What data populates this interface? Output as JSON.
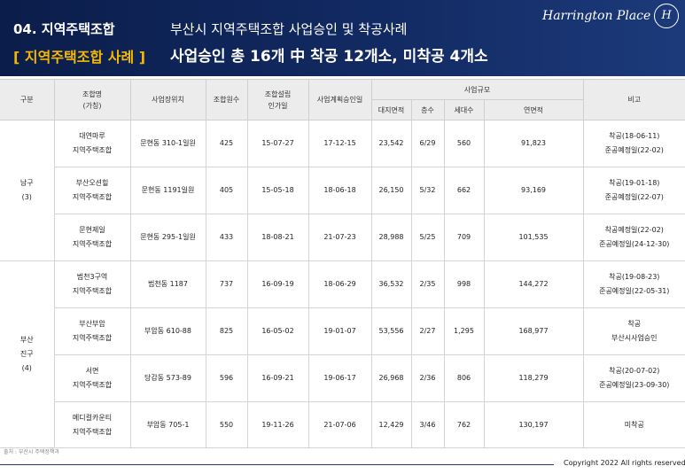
{
  "header": {
    "section_title": "04. 지역주택조합",
    "section_subtitle": "부산시 지역주택조합 사업승인 및 착공사례",
    "main_left": "[ 지역주택조합 사례 ]",
    "main_right": "사업승인 총 16개 中 착공 12개소, 미착공  4개소",
    "logo_text": "Harrington Place",
    "logo_emblem": "H"
  },
  "table": {
    "headers": {
      "category": "구분",
      "union_name_l1": "조합명",
      "union_name_l2": "(가칭)",
      "location": "사업장위치",
      "members": "조합원수",
      "setup_l1": "조합설립",
      "setup_l2": "인가일",
      "plan_approval": "사업계획승인일",
      "scale": "사업규모",
      "land_area": "대지면적",
      "floors": "층수",
      "households": "세대수",
      "floor_area": "연면적",
      "remarks": "비고"
    },
    "groups": [
      {
        "name": "남구",
        "name_l2": "",
        "count": "(3)",
        "rows": [
          {
            "name_l1": "대연마루",
            "name_l2": "지역주택조합",
            "location": "문현동 310-1일원",
            "members": "425",
            "setup": "15-07-27",
            "approval": "17-12-15",
            "land": "23,542",
            "floors": "6/29",
            "households": "560",
            "area": "91,823",
            "remark_l1": "착공(18-06-11)",
            "remark_l2": "준공예정일(22-02)"
          },
          {
            "name_l1": "부산오션힐",
            "name_l2": "지역주택조합",
            "location": "문현동 1191일원",
            "members": "405",
            "setup": "15-05-18",
            "approval": "18-06-18",
            "land": "26,150",
            "floors": "5/32",
            "households": "662",
            "area": "93,169",
            "remark_l1": "착공(19-01-18)",
            "remark_l2": "준공예정일(22-07)"
          },
          {
            "name_l1": "문현제일",
            "name_l2": "지역주택조합",
            "location": "문현동 295-1일원",
            "members": "433",
            "setup": "18-08-21",
            "approval": "21-07-23",
            "land": "28,988",
            "floors": "5/25",
            "households": "709",
            "area": "101,535",
            "remark_l1": "착공예정일(22-02)",
            "remark_l2": "준공예정일(24-12-30)"
          }
        ]
      },
      {
        "name": "부산",
        "name_l2": "진구",
        "count": "(4)",
        "rows": [
          {
            "name_l1": "범천3구역",
            "name_l2": "지역주택조합",
            "location": "범천동 1187",
            "members": "737",
            "setup": "16-09-19",
            "approval": "18-06-29",
            "land": "36,532",
            "floors": "2/35",
            "households": "998",
            "area": "144,272",
            "remark_l1": "착공(19-08-23)",
            "remark_l2": "준공예정일(22-05-31)"
          },
          {
            "name_l1": "부산부암",
            "name_l2": "지역주택조합",
            "location": "부암동 610-88",
            "members": "825",
            "setup": "16-05-02",
            "approval": "19-01-07",
            "land": "53,556",
            "floors": "2/27",
            "households": "1,295",
            "area": "168,977",
            "remark_l1": "착공",
            "remark_l2": "부산시사업승인"
          },
          {
            "name_l1": "서면",
            "name_l2": "지역주택조합",
            "location": "당감동 573-89",
            "members": "596",
            "setup": "16-09-21",
            "approval": "19-06-17",
            "land": "26,968",
            "floors": "2/36",
            "households": "806",
            "area": "118,279",
            "remark_l1": "착공(20-07-02)",
            "remark_l2": "준공예정일(23-09-30)"
          },
          {
            "name_l1": "메디컬카운티",
            "name_l2": "지역주택조합",
            "location": "부암동 705-1",
            "members": "550",
            "setup": "19-11-26",
            "approval": "21-07-06",
            "land": "12,429",
            "floors": "3/46",
            "households": "762",
            "area": "130,197",
            "remark_l1": "미착공",
            "remark_l2": ""
          }
        ]
      }
    ]
  },
  "footer": {
    "source": "출처 : 부산시 주택정책과",
    "copyright": "Copyright 2022   All rights reserved"
  }
}
